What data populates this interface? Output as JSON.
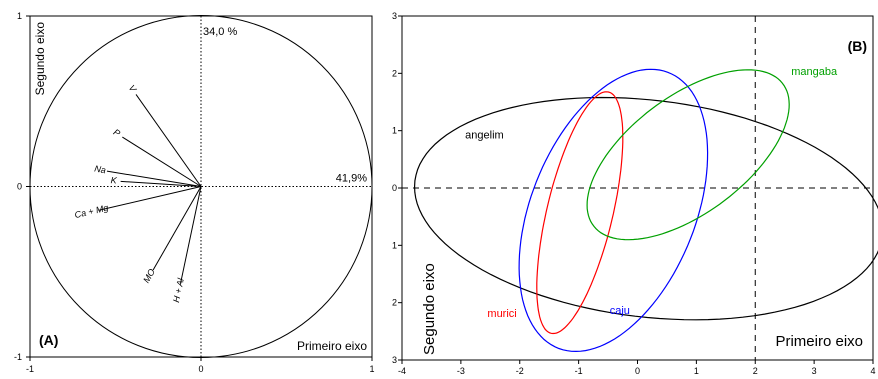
{
  "chart_data": [
    {
      "type": "scatter",
      "panel_label": "(A)",
      "title": "",
      "xlabel": "Primeiro eixo",
      "ylabel": "Segundo eixo",
      "xlim": [
        -1,
        1
      ],
      "ylim": [
        -1,
        1
      ],
      "x_ticks": [
        "-1",
        "0",
        "1"
      ],
      "y_ticks": [
        "1",
        "0",
        "-1"
      ],
      "axis_annotations": {
        "second_axis_variance": "34,0 %",
        "first_axis_variance": "41,9%"
      },
      "unit_circle": true,
      "vectors": [
        {
          "label": "V",
          "x": -0.38,
          "y": 0.54
        },
        {
          "label": "P",
          "x": -0.46,
          "y": 0.29
        },
        {
          "label": "Na",
          "x": -0.55,
          "y": 0.09
        },
        {
          "label": "K",
          "x": -0.47,
          "y": 0.03
        },
        {
          "label": "Ca + Mg",
          "x": -0.6,
          "y": -0.14
        },
        {
          "label": "MO",
          "x": -0.28,
          "y": -0.49
        },
        {
          "label": "H + Al",
          "x": -0.12,
          "y": -0.57
        }
      ]
    },
    {
      "type": "scatter",
      "panel_label": "(B)",
      "title": "",
      "xlabel": "Primeiro eixo",
      "ylabel": "Segundo eixo",
      "xlim": [
        -4,
        4
      ],
      "ylim": [
        -3,
        3
      ],
      "x_ticks": [
        "-4",
        "-3",
        "-2",
        "-1",
        "0",
        "1",
        "2",
        "3",
        "4"
      ],
      "y_ticks": [
        "3",
        "2",
        "1",
        "0",
        "1",
        "2",
        "3"
      ],
      "reference_lines": {
        "x": 2,
        "y": 0
      },
      "confidence_ellipses": [
        {
          "name": "angelim",
          "color": "#000000",
          "cx": 0.19,
          "cy": -0.36,
          "rx": 4.0,
          "ry": 1.89,
          "angle": -7
        },
        {
          "name": "caju",
          "color": "#0000ff",
          "cx": -0.41,
          "cy": -0.39,
          "rx": 2.58,
          "ry": 1.4,
          "angle": 69
        },
        {
          "name": "murici",
          "color": "#ff0000",
          "cx": -0.98,
          "cy": -0.43,
          "rx": 2.16,
          "ry": 0.56,
          "angle": 77
        },
        {
          "name": "mangaba",
          "color": "#00a000",
          "cx": 0.86,
          "cy": 0.58,
          "rx": 2.03,
          "ry": 1.01,
          "angle": 38
        }
      ],
      "series_labels": [
        {
          "name": "angelim",
          "x": -2.6,
          "y": 0.86,
          "color": "#000000"
        },
        {
          "name": "mangaba",
          "x": 3.0,
          "y": 1.97,
          "color": "#00a000"
        },
        {
          "name": "murici",
          "x": -2.3,
          "y": -2.25,
          "color": "#ff0000"
        },
        {
          "name": "caju",
          "x": -0.3,
          "y": -2.2,
          "color": "#0000ff"
        }
      ]
    }
  ]
}
